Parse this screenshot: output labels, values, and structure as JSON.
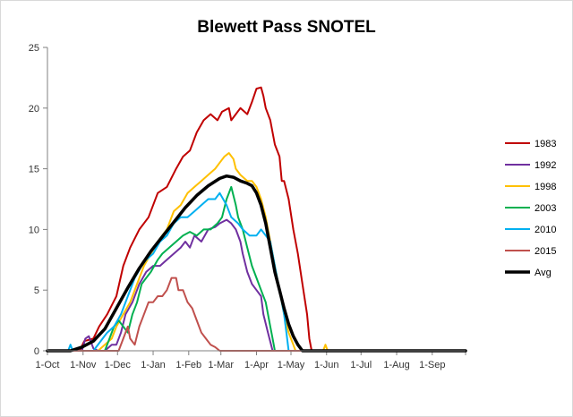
{
  "chart_data": {
    "type": "line",
    "title": "Blewett Pass SNOTEL",
    "xlabel": "",
    "ylabel": "",
    "ylim": [
      0,
      25
    ],
    "xlim": [
      0,
      364
    ],
    "grid": false,
    "legend_position": "right",
    "y_ticks": [
      0,
      5,
      10,
      15,
      20,
      25
    ],
    "x_ticks": [
      {
        "label": "1-Oct",
        "day": 0
      },
      {
        "label": "1-Nov",
        "day": 31
      },
      {
        "label": "1-Dec",
        "day": 61
      },
      {
        "label": "1-Jan",
        "day": 92
      },
      {
        "label": "1-Feb",
        "day": 123
      },
      {
        "label": "1-Mar",
        "day": 151
      },
      {
        "label": "1-Apr",
        "day": 182
      },
      {
        "label": "1-May",
        "day": 212
      },
      {
        "label": "1-Jun",
        "day": 243
      },
      {
        "label": "1-Jul",
        "day": 273
      },
      {
        "label": "1-Aug",
        "day": 304
      },
      {
        "label": "1-Sep",
        "day": 335
      }
    ],
    "series": [
      {
        "name": "1983",
        "color": "#c00000",
        "width": 2,
        "points": [
          [
            0,
            0
          ],
          [
            28,
            0
          ],
          [
            32,
            0.8
          ],
          [
            40,
            1
          ],
          [
            45,
            2
          ],
          [
            52,
            3
          ],
          [
            60,
            4.5
          ],
          [
            66,
            7
          ],
          [
            72,
            8.5
          ],
          [
            80,
            10
          ],
          [
            88,
            11
          ],
          [
            96,
            13
          ],
          [
            104,
            13.5
          ],
          [
            112,
            15
          ],
          [
            118,
            16
          ],
          [
            124,
            16.5
          ],
          [
            130,
            18
          ],
          [
            136,
            19
          ],
          [
            142,
            19.5
          ],
          [
            148,
            19
          ],
          [
            152,
            19.7
          ],
          [
            158,
            20
          ],
          [
            160,
            19
          ],
          [
            164,
            19.5
          ],
          [
            168,
            20
          ],
          [
            174,
            19.5
          ],
          [
            178,
            20.5
          ],
          [
            182,
            21.6
          ],
          [
            186,
            21.7
          ],
          [
            188,
            21
          ],
          [
            190,
            20
          ],
          [
            194,
            19
          ],
          [
            198,
            17
          ],
          [
            202,
            16
          ],
          [
            204,
            14
          ],
          [
            206,
            14
          ],
          [
            210,
            12.5
          ],
          [
            214,
            10
          ],
          [
            218,
            8
          ],
          [
            222,
            5.5
          ],
          [
            226,
            3
          ],
          [
            228,
            1
          ],
          [
            230,
            0
          ],
          [
            364,
            0
          ]
        ]
      },
      {
        "name": "1992",
        "color": "#7030a0",
        "width": 2,
        "points": [
          [
            0,
            0
          ],
          [
            30,
            0
          ],
          [
            33,
            1
          ],
          [
            36,
            1.2
          ],
          [
            40,
            0.2
          ],
          [
            44,
            0
          ],
          [
            50,
            0
          ],
          [
            56,
            0.5
          ],
          [
            60,
            0.5
          ],
          [
            64,
            1.5
          ],
          [
            68,
            3
          ],
          [
            74,
            4
          ],
          [
            80,
            5.5
          ],
          [
            86,
            6.5
          ],
          [
            92,
            7
          ],
          [
            98,
            7
          ],
          [
            104,
            7.5
          ],
          [
            110,
            8
          ],
          [
            116,
            8.5
          ],
          [
            120,
            9
          ],
          [
            124,
            8.5
          ],
          [
            128,
            9.5
          ],
          [
            134,
            9
          ],
          [
            140,
            10
          ],
          [
            146,
            10.2
          ],
          [
            150,
            10.5
          ],
          [
            156,
            10.8
          ],
          [
            160,
            10.5
          ],
          [
            164,
            10
          ],
          [
            168,
            9
          ],
          [
            170,
            8
          ],
          [
            174,
            6.5
          ],
          [
            178,
            5.5
          ],
          [
            182,
            5
          ],
          [
            186,
            4.5
          ],
          [
            188,
            3
          ],
          [
            192,
            1.5
          ],
          [
            196,
            0
          ],
          [
            364,
            0
          ]
        ]
      },
      {
        "name": "1998",
        "color": "#ffc000",
        "width": 2,
        "points": [
          [
            0,
            0
          ],
          [
            44,
            0
          ],
          [
            50,
            0.5
          ],
          [
            56,
            1
          ],
          [
            60,
            2
          ],
          [
            66,
            3
          ],
          [
            72,
            4
          ],
          [
            78,
            5.5
          ],
          [
            84,
            7
          ],
          [
            90,
            8
          ],
          [
            96,
            9
          ],
          [
            104,
            10
          ],
          [
            110,
            11.5
          ],
          [
            116,
            12
          ],
          [
            122,
            13
          ],
          [
            128,
            13.5
          ],
          [
            134,
            14
          ],
          [
            140,
            14.5
          ],
          [
            146,
            15
          ],
          [
            150,
            15.5
          ],
          [
            154,
            16
          ],
          [
            158,
            16.3
          ],
          [
            162,
            15.8
          ],
          [
            164,
            15
          ],
          [
            168,
            14.5
          ],
          [
            174,
            14
          ],
          [
            178,
            14
          ],
          [
            182,
            13.5
          ],
          [
            186,
            12.5
          ],
          [
            190,
            11
          ],
          [
            194,
            9
          ],
          [
            198,
            7
          ],
          [
            202,
            5
          ],
          [
            206,
            3
          ],
          [
            210,
            1.5
          ],
          [
            214,
            0.5
          ],
          [
            216,
            0
          ],
          [
            240,
            0
          ],
          [
            242,
            0.5
          ],
          [
            244,
            0
          ],
          [
            364,
            0
          ]
        ]
      },
      {
        "name": "2003",
        "color": "#00b050",
        "width": 2,
        "points": [
          [
            0,
            0
          ],
          [
            50,
            0
          ],
          [
            54,
            1
          ],
          [
            58,
            2
          ],
          [
            62,
            2.5
          ],
          [
            66,
            2
          ],
          [
            70,
            1.5
          ],
          [
            74,
            3
          ],
          [
            78,
            4
          ],
          [
            82,
            5.5
          ],
          [
            86,
            6
          ],
          [
            90,
            6.5
          ],
          [
            96,
            7.5
          ],
          [
            100,
            8
          ],
          [
            106,
            8.5
          ],
          [
            112,
            9
          ],
          [
            118,
            9.5
          ],
          [
            124,
            9.8
          ],
          [
            130,
            9.5
          ],
          [
            136,
            10
          ],
          [
            142,
            10
          ],
          [
            148,
            10.5
          ],
          [
            152,
            11
          ],
          [
            156,
            12.5
          ],
          [
            160,
            13.5
          ],
          [
            164,
            12
          ],
          [
            166,
            11
          ],
          [
            170,
            10
          ],
          [
            174,
            8.5
          ],
          [
            178,
            7
          ],
          [
            182,
            6
          ],
          [
            186,
            5
          ],
          [
            190,
            4
          ],
          [
            194,
            2
          ],
          [
            196,
            1
          ],
          [
            198,
            0
          ],
          [
            364,
            0
          ]
        ]
      },
      {
        "name": "2010",
        "color": "#00b0f0",
        "width": 2,
        "points": [
          [
            0,
            0
          ],
          [
            18,
            0
          ],
          [
            20,
            0.5
          ],
          [
            22,
            0
          ],
          [
            40,
            0
          ],
          [
            48,
            1
          ],
          [
            52,
            1.5
          ],
          [
            58,
            2
          ],
          [
            64,
            3
          ],
          [
            70,
            4.5
          ],
          [
            76,
            6
          ],
          [
            82,
            7
          ],
          [
            86,
            7.5
          ],
          [
            92,
            8
          ],
          [
            98,
            9
          ],
          [
            104,
            9.5
          ],
          [
            110,
            10.5
          ],
          [
            116,
            11
          ],
          [
            122,
            11
          ],
          [
            128,
            11.5
          ],
          [
            134,
            12
          ],
          [
            140,
            12.5
          ],
          [
            146,
            12.5
          ],
          [
            150,
            13
          ],
          [
            156,
            12
          ],
          [
            160,
            11
          ],
          [
            166,
            10.5
          ],
          [
            170,
            10
          ],
          [
            176,
            9.5
          ],
          [
            182,
            9.5
          ],
          [
            186,
            10
          ],
          [
            190,
            9.5
          ],
          [
            194,
            9
          ],
          [
            198,
            7
          ],
          [
            202,
            5
          ],
          [
            206,
            3
          ],
          [
            208,
            1.5
          ],
          [
            210,
            0
          ],
          [
            364,
            0
          ]
        ]
      },
      {
        "name": "2015",
        "color": "#c0504d",
        "width": 2,
        "points": [
          [
            0,
            0
          ],
          [
            62,
            0
          ],
          [
            66,
            1
          ],
          [
            70,
            2
          ],
          [
            72,
            1
          ],
          [
            76,
            0.5
          ],
          [
            80,
            2
          ],
          [
            84,
            3
          ],
          [
            88,
            4
          ],
          [
            92,
            4
          ],
          [
            96,
            4.5
          ],
          [
            100,
            4.5
          ],
          [
            104,
            5
          ],
          [
            108,
            6
          ],
          [
            112,
            6
          ],
          [
            114,
            5
          ],
          [
            118,
            5
          ],
          [
            122,
            4
          ],
          [
            126,
            3.5
          ],
          [
            130,
            2.5
          ],
          [
            134,
            1.5
          ],
          [
            138,
            1
          ],
          [
            142,
            0.5
          ],
          [
            146,
            0.3
          ],
          [
            150,
            0
          ],
          [
            364,
            0
          ]
        ]
      },
      {
        "name": "Avg",
        "color": "#000000",
        "width": 3.5,
        "points": [
          [
            0,
            0
          ],
          [
            20,
            0
          ],
          [
            30,
            0.3
          ],
          [
            40,
            0.8
          ],
          [
            50,
            1.8
          ],
          [
            60,
            3.5
          ],
          [
            70,
            5.2
          ],
          [
            80,
            6.8
          ],
          [
            90,
            8.2
          ],
          [
            100,
            9.4
          ],
          [
            110,
            10.6
          ],
          [
            120,
            11.8
          ],
          [
            130,
            12.8
          ],
          [
            140,
            13.6
          ],
          [
            150,
            14.2
          ],
          [
            156,
            14.4
          ],
          [
            162,
            14.3
          ],
          [
            168,
            14
          ],
          [
            174,
            13.8
          ],
          [
            178,
            13.6
          ],
          [
            182,
            13
          ],
          [
            186,
            12
          ],
          [
            190,
            10.5
          ],
          [
            194,
            8.5
          ],
          [
            198,
            6.5
          ],
          [
            202,
            5
          ],
          [
            206,
            3.5
          ],
          [
            210,
            2.2
          ],
          [
            214,
            1.2
          ],
          [
            218,
            0.5
          ],
          [
            222,
            0
          ],
          [
            364,
            0
          ]
        ]
      }
    ]
  }
}
